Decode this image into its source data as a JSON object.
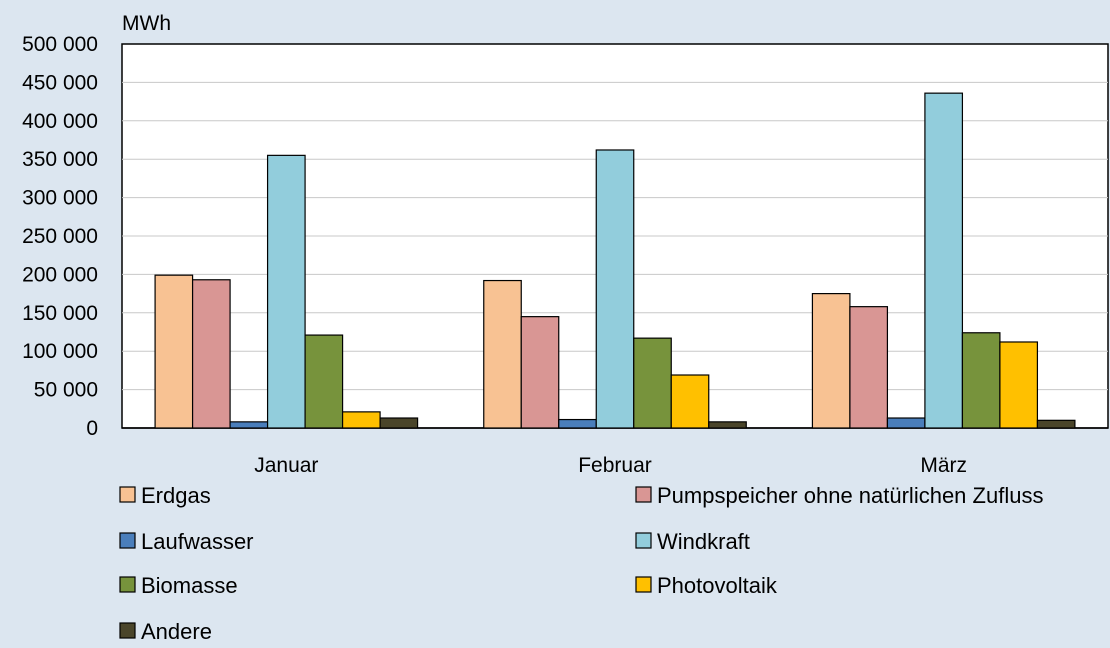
{
  "chart_data": {
    "type": "bar",
    "unit": "MWh",
    "categories": [
      "Januar",
      "Februar",
      "März"
    ],
    "ylim": [
      0,
      500000
    ],
    "yticks": [
      0,
      50000,
      100000,
      150000,
      200000,
      250000,
      300000,
      350000,
      400000,
      450000,
      500000
    ],
    "ytick_labels": [
      "0",
      "50 000",
      "100 000",
      "150 000",
      "200 000",
      "250 000",
      "300 000",
      "350 000",
      "400 000",
      "450 000",
      "500 000"
    ],
    "grid": true,
    "legend_position": "bottom",
    "series": [
      {
        "name": "Erdgas",
        "color": "#f8c293",
        "values": [
          199000,
          192000,
          175000
        ]
      },
      {
        "name": "Pumpspeicher ohne natürlichen Zufluss",
        "color": "#d99694",
        "values": [
          193000,
          145000,
          158000
        ]
      },
      {
        "name": "Laufwasser",
        "color": "#4a7ebb",
        "values": [
          8000,
          11000,
          13000
        ]
      },
      {
        "name": "Windkraft",
        "color": "#92cddc",
        "values": [
          355000,
          362000,
          436000
        ]
      },
      {
        "name": "Biomasse",
        "color": "#77933c",
        "values": [
          121000,
          117000,
          124000
        ]
      },
      {
        "name": "Photovoltaik",
        "color": "#ffc000",
        "values": [
          21000,
          69000,
          112000
        ]
      },
      {
        "name": "Andere",
        "color": "#4a452a",
        "values": [
          13000,
          8000,
          10000
        ]
      }
    ]
  }
}
